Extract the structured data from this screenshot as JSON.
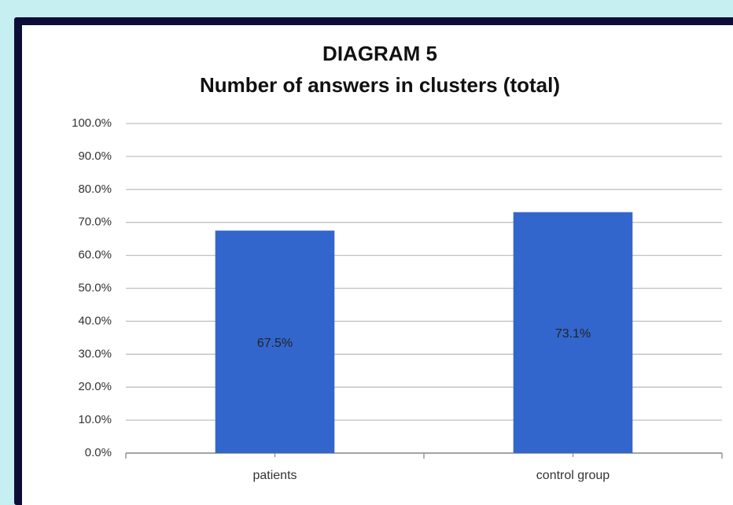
{
  "chart_data": {
    "type": "bar",
    "title": "DIAGRAM 5",
    "subtitle": "Number of answers in clusters (total)",
    "categories": [
      "patients",
      "control group"
    ],
    "values": [
      67.5,
      73.1
    ],
    "value_labels": [
      "67.5%",
      "73.1%"
    ],
    "color": "#3366cc",
    "ylim": [
      0,
      100
    ],
    "yticks": [
      {
        "value": 0,
        "label": "0.0%"
      },
      {
        "value": 10,
        "label": "10.0%"
      },
      {
        "value": 20,
        "label": "20.0%"
      },
      {
        "value": 30,
        "label": "30.0%"
      },
      {
        "value": 40,
        "label": "40.0%"
      },
      {
        "value": 50,
        "label": "50.0%"
      },
      {
        "value": 60,
        "label": "60.0%"
      },
      {
        "value": 70,
        "label": "70.0%"
      },
      {
        "value": 80,
        "label": "80.0%"
      },
      {
        "value": 90,
        "label": "90.0%"
      },
      {
        "value": 100,
        "label": "100.0%"
      }
    ],
    "grid": true
  }
}
